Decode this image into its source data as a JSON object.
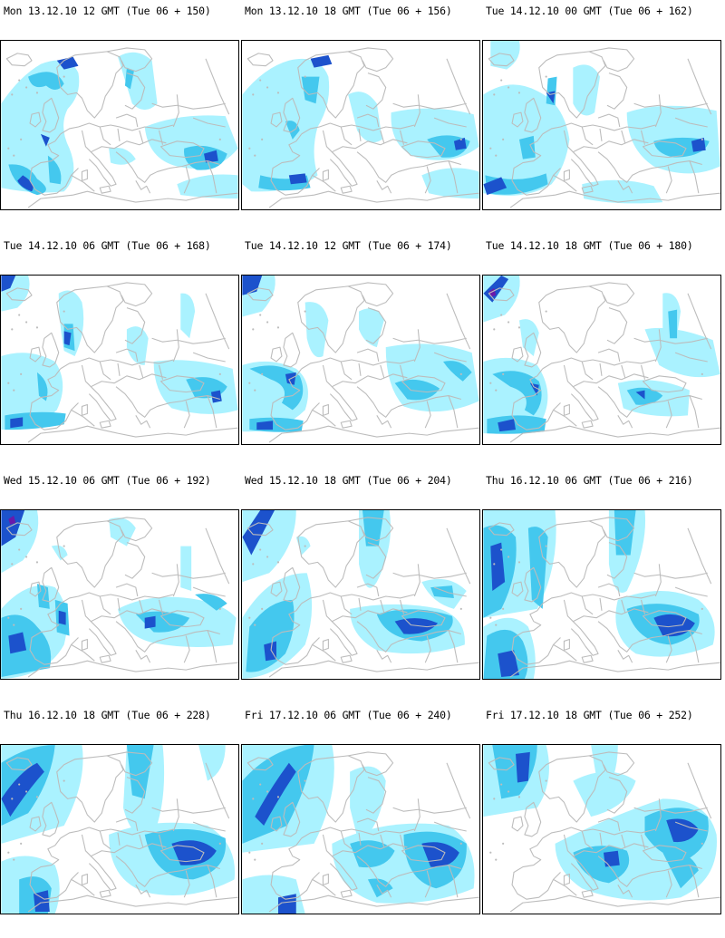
{
  "colors": {
    "precip_light": "#aaf2ff",
    "precip_mid": "#44c8ee",
    "precip_high": "#2a8ee6",
    "precip_heavy": "#1c52cc",
    "precip_extreme": "#6a1aaa",
    "coastline": "#bcbcbc",
    "frame": "#000000"
  },
  "rows": [
    {
      "panels": [
        {
          "title": "Mon 13.12.10 12 GMT (Tue 06 + 150)"
        },
        {
          "title": "Mon 13.12.10 18 GMT (Tue 06 + 156)"
        },
        {
          "title": "Tue 14.12.10 00 GMT (Tue 06 + 162)"
        }
      ]
    },
    {
      "panels": [
        {
          "title": "Tue 14.12.10 06 GMT (Tue 06 + 168)"
        },
        {
          "title": "Tue 14.12.10 12 GMT (Tue 06 + 174)"
        },
        {
          "title": "Tue 14.12.10 18 GMT (Tue 06 + 180)"
        }
      ]
    },
    {
      "panels": [
        {
          "title": "Wed 15.12.10 06 GMT (Tue 06 + 192)"
        },
        {
          "title": "Wed 15.12.10 18 GMT (Tue 06 + 204)"
        },
        {
          "title": "Thu 16.12.10 06 GMT (Tue 06 + 216)"
        }
      ]
    },
    {
      "panels": [
        {
          "title": "Thu 16.12.10 18 GMT (Tue 06 + 228)"
        },
        {
          "title": "Fri 17.12.10 06 GMT (Tue 06 + 240)"
        },
        {
          "title": "Fri 17.12.10 18 GMT (Tue 06 + 252)"
        }
      ]
    }
  ]
}
